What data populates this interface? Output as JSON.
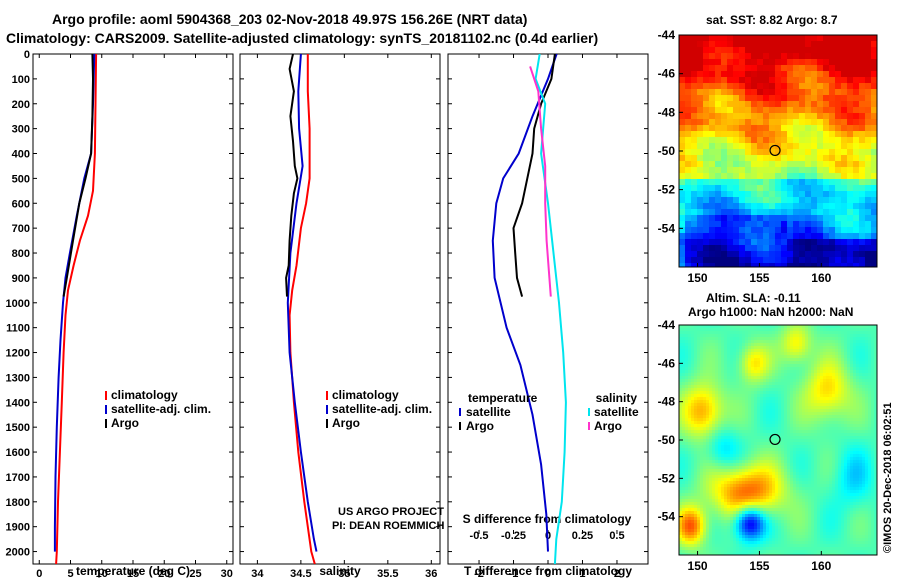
{
  "header": {
    "line1": "Argo profile: aoml 5904368_203 02-Nov-2018 49.97S 156.26E (NRT data)",
    "line2": "Climatology: CARS2009. Satellite-adjusted climatology: synTS_20181102.nc (0.4d earlier)"
  },
  "credit": "US ARGO PROJECT\nPI: DEAN ROEMMICH",
  "stamp": "©IMOS 20-Dec-2018 06:02:51",
  "colors": {
    "climatology": "#ff0000",
    "satellite": "#0000cc",
    "argo": "#000000",
    "salinity_sat": "#00e5ee",
    "salinity_argo": "#ff33cc"
  },
  "chart_data": [
    {
      "type": "line",
      "id": "temperature",
      "xlabel": "temperature (deg C)",
      "xlim": [
        -1,
        31
      ],
      "xticks": [
        "0",
        "5",
        "10",
        "15",
        "20",
        "25",
        "30"
      ],
      "ylim": [
        2050,
        0
      ],
      "yticks": [
        "0",
        "100",
        "200",
        "300",
        "400",
        "500",
        "600",
        "700",
        "800",
        "900",
        "1000",
        "1100",
        "1200",
        "1300",
        "1400",
        "1500",
        "1600",
        "1700",
        "1800",
        "1900",
        "2000"
      ],
      "legend": [
        "climatology",
        "satellite-adj. clim.",
        "Argo"
      ],
      "series": [
        {
          "name": "climatology",
          "color": "#ff0000",
          "points": [
            [
              9.1,
              0
            ],
            [
              9.0,
              200
            ],
            [
              8.9,
              400
            ],
            [
              8.6,
              550
            ],
            [
              7.8,
              650
            ],
            [
              6.5,
              750
            ],
            [
              5.5,
              850
            ],
            [
              4.6,
              950
            ],
            [
              4.2,
              1050
            ],
            [
              3.9,
              1200
            ],
            [
              3.6,
              1400
            ],
            [
              3.3,
              1600
            ],
            [
              3.0,
              1800
            ],
            [
              2.8,
              2000
            ],
            [
              2.7,
              2050
            ]
          ]
        },
        {
          "name": "satellite-adj. clim.",
          "color": "#0000cc",
          "points": [
            [
              8.8,
              0
            ],
            [
              8.6,
              200
            ],
            [
              8.3,
              400
            ],
            [
              7.2,
              500
            ],
            [
              6.0,
              650
            ],
            [
              4.9,
              800
            ],
            [
              4.2,
              900
            ],
            [
              3.8,
              1000
            ],
            [
              3.4,
              1150
            ],
            [
              3.1,
              1300
            ],
            [
              2.8,
              1500
            ],
            [
              2.6,
              1700
            ],
            [
              2.5,
              1900
            ],
            [
              2.5,
              2000
            ]
          ]
        },
        {
          "name": "Argo",
          "color": "#000000",
          "points": [
            [
              8.5,
              0
            ],
            [
              8.6,
              100
            ],
            [
              8.5,
              250
            ],
            [
              8.3,
              400
            ],
            [
              7.4,
              500
            ],
            [
              6.4,
              600
            ],
            [
              5.4,
              750
            ],
            [
              4.4,
              900
            ],
            [
              3.9,
              975
            ]
          ]
        }
      ]
    },
    {
      "type": "line",
      "id": "salinity",
      "xlabel": "salinity",
      "xlim": [
        33.8,
        36.1
      ],
      "xticks": [
        "34",
        "34.5",
        "35",
        "35.5",
        "36"
      ],
      "ylim": [
        2050,
        0
      ],
      "legend": [
        "climatology",
        "satellite-adj. clim.",
        "Argo"
      ],
      "series": [
        {
          "name": "climatology",
          "color": "#ff0000",
          "points": [
            [
              34.58,
              0
            ],
            [
              34.58,
              150
            ],
            [
              34.6,
              300
            ],
            [
              34.6,
              500
            ],
            [
              34.56,
              600
            ],
            [
              34.5,
              700
            ],
            [
              34.45,
              850
            ],
            [
              34.4,
              950
            ],
            [
              34.37,
              1050
            ],
            [
              34.38,
              1200
            ],
            [
              34.42,
              1400
            ],
            [
              34.47,
              1600
            ],
            [
              34.54,
              1800
            ],
            [
              34.62,
              2000
            ],
            [
              34.66,
              2050
            ]
          ]
        },
        {
          "name": "satellite-adj. clim.",
          "color": "#0000cc",
          "points": [
            [
              34.5,
              0
            ],
            [
              34.47,
              150
            ],
            [
              34.48,
              300
            ],
            [
              34.52,
              450
            ],
            [
              34.45,
              600
            ],
            [
              34.38,
              800
            ],
            [
              34.35,
              1000
            ],
            [
              34.37,
              1200
            ],
            [
              34.43,
              1400
            ],
            [
              34.5,
              1600
            ],
            [
              34.58,
              1800
            ],
            [
              34.65,
              1950
            ],
            [
              34.68,
              2000
            ]
          ]
        },
        {
          "name": "Argo",
          "color": "#000000",
          "points": [
            [
              34.41,
              0
            ],
            [
              34.37,
              60
            ],
            [
              34.42,
              150
            ],
            [
              34.38,
              250
            ],
            [
              34.41,
              350
            ],
            [
              34.43,
              450
            ],
            [
              34.46,
              500
            ],
            [
              34.42,
              560
            ],
            [
              34.39,
              650
            ],
            [
              34.37,
              750
            ],
            [
              34.36,
              850
            ],
            [
              34.33,
              900
            ],
            [
              34.34,
              975
            ]
          ]
        }
      ]
    },
    {
      "type": "line",
      "id": "difference",
      "xlabel": "T difference from climatology",
      "xlim": [
        -2.9,
        2.9
      ],
      "xticks": [
        "-2",
        "-1",
        "0",
        "1",
        "2"
      ],
      "xlabel_top": "S difference from climatology",
      "xticks_top": [
        "-0.5",
        "-0.25",
        "0",
        "0.25",
        "0.5"
      ],
      "ylim": [
        2050,
        0
      ],
      "legend": [
        {
          "group": "temperature",
          "items": [
            "satellite",
            "Argo"
          ]
        },
        {
          "group": "salinity",
          "items": [
            "satellite",
            "Argo"
          ]
        }
      ],
      "series": [
        {
          "name": "temperature satellite",
          "color": "#0000cc",
          "points": [
            [
              0.25,
              0
            ],
            [
              0.0,
              100
            ],
            [
              -0.45,
              250
            ],
            [
              -0.85,
              400
            ],
            [
              -1.3,
              500
            ],
            [
              -1.5,
              600
            ],
            [
              -1.6,
              750
            ],
            [
              -1.55,
              900
            ],
            [
              -1.2,
              1100
            ],
            [
              -0.8,
              1250
            ],
            [
              -0.45,
              1450
            ],
            [
              -0.2,
              1650
            ],
            [
              -0.05,
              1850
            ],
            [
              0.0,
              2000
            ]
          ]
        },
        {
          "name": "temperature Argo",
          "color": "#000000",
          "points": [
            [
              0.2,
              0
            ],
            [
              0.1,
              100
            ],
            [
              -0.2,
              200
            ],
            [
              -0.4,
              300
            ],
            [
              -0.45,
              400
            ],
            [
              -0.6,
              500
            ],
            [
              -0.75,
              600
            ],
            [
              -1.0,
              700
            ],
            [
              -0.95,
              800
            ],
            [
              -0.9,
              900
            ],
            [
              -0.75,
              975
            ]
          ]
        },
        {
          "name": "salinity satellite",
          "color": "#00e5ee",
          "points": [
            [
              -0.06,
              0
            ],
            [
              -0.09,
              100
            ],
            [
              -0.02,
              200
            ],
            [
              -0.05,
              400
            ],
            [
              0.0,
              600
            ],
            [
              0.04,
              800
            ],
            [
              0.08,
              1000
            ],
            [
              0.11,
              1200
            ],
            [
              0.13,
              1400
            ],
            [
              0.12,
              1600
            ],
            [
              0.1,
              1800
            ],
            [
              0.06,
              1950
            ],
            [
              0.05,
              2050
            ]
          ]
        },
        {
          "name": "salinity Argo",
          "color": "#ff33cc",
          "points": [
            [
              -0.13,
              50
            ],
            [
              -0.07,
              150
            ],
            [
              -0.05,
              300
            ],
            [
              -0.02,
              450
            ],
            [
              -0.02,
              600
            ],
            [
              -0.01,
              750
            ],
            [
              0.01,
              900
            ],
            [
              0.02,
              975
            ]
          ]
        }
      ]
    },
    {
      "type": "heatmap",
      "id": "sst-map",
      "title": "sat. SST: 8.82  Argo: 8.7",
      "xlim": [
        148.5,
        164.5
      ],
      "ylim": [
        -56,
        -44
      ],
      "xticks": [
        "150",
        "155",
        "160"
      ],
      "yticks": [
        "-44",
        "-46",
        "-48",
        "-50",
        "-52",
        "-54"
      ],
      "marker": [
        156.26,
        -49.97
      ]
    },
    {
      "type": "heatmap",
      "id": "sla-map",
      "title": "Altim. SLA: -0.11",
      "subtitle": "Argo h1000: NaN h2000: NaN",
      "xlim": [
        148.5,
        164.5
      ],
      "ylim": [
        -56,
        -44
      ],
      "xticks": [
        "150",
        "155",
        "160"
      ],
      "yticks": [
        "-44",
        "-46",
        "-48",
        "-50",
        "-52",
        "-54"
      ],
      "marker": [
        156.26,
        -49.97
      ]
    }
  ]
}
